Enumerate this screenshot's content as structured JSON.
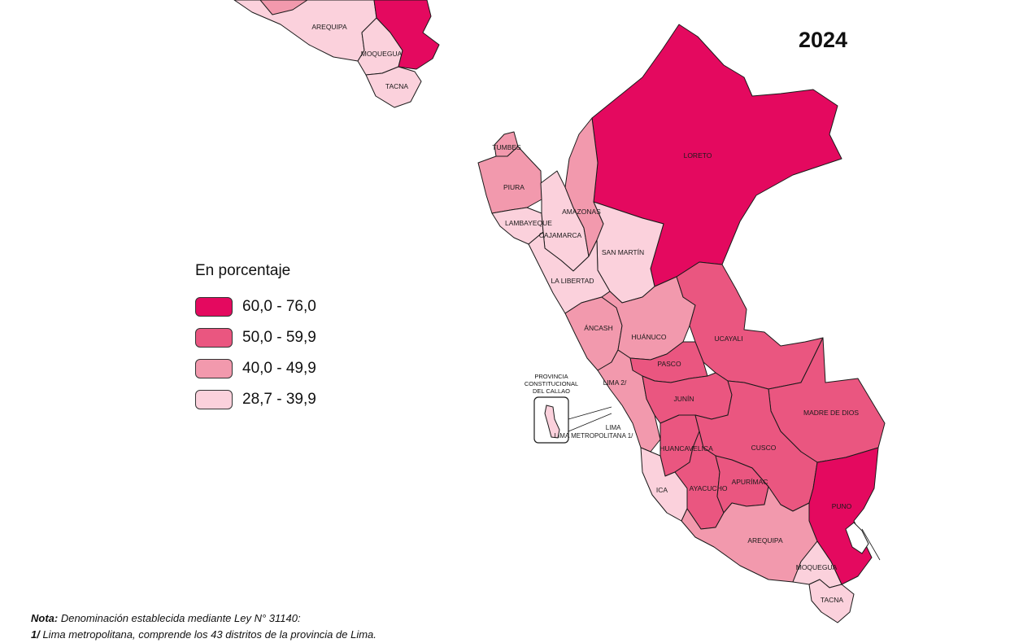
{
  "year": "2024",
  "legend": {
    "title": "En porcentaje",
    "items": [
      {
        "label": "60,0 - 76,0",
        "color": "#e4095f"
      },
      {
        "label": "50,0 - 59,9",
        "color": "#ea5680"
      },
      {
        "label": "40,0 - 49,9",
        "color": "#f299ad"
      },
      {
        "label": "28,7 - 39,9",
        "color": "#fbd1dc"
      }
    ]
  },
  "map": {
    "regions": [
      {
        "name": "LORETO",
        "class": 0
      },
      {
        "name": "TUMBES",
        "class": 2
      },
      {
        "name": "PIURA",
        "class": 2
      },
      {
        "name": "LAMBAYEQUE",
        "class": 3
      },
      {
        "name": "CAJAMARCA",
        "class": 3
      },
      {
        "name": "AMAZONAS",
        "class": 2
      },
      {
        "name": "SAN MARTÍN",
        "class": 3
      },
      {
        "name": "LA LIBERTAD",
        "class": 3
      },
      {
        "name": "ÁNCASH",
        "class": 2
      },
      {
        "name": "HUÁNUCO",
        "class": 2
      },
      {
        "name": "UCAYALI",
        "class": 1
      },
      {
        "name": "PASCO",
        "class": 1
      },
      {
        "name": "LIMA 2/",
        "class": 2
      },
      {
        "name": "JUNÍN",
        "class": 1
      },
      {
        "name": "MADRE DE DIOS",
        "class": 1
      },
      {
        "name": "HUANCAVELICA",
        "class": 1
      },
      {
        "name": "CUSCO",
        "class": 1
      },
      {
        "name": "ICA",
        "class": 3
      },
      {
        "name": "AYACUCHO",
        "class": 1
      },
      {
        "name": "APURÍMAC",
        "class": 1
      },
      {
        "name": "PUNO",
        "class": 0
      },
      {
        "name": "AREQUIPA",
        "class": 2
      },
      {
        "name": "MOQUEGUA",
        "class": 3
      },
      {
        "name": "TACNA",
        "class": 3
      }
    ],
    "callao_label": "PROVINCIA CONSTITUCIONAL DEL CALLAO",
    "lima_metro_label": "LIMA METROPOLITANA 1/"
  },
  "previous_map": {
    "labels": [
      "AREQUIPA",
      "MOQUEGUA",
      "TACNA"
    ]
  },
  "notes": {
    "line1_bold": "Nota:",
    "line1_text": " Denominación establecida mediante Ley N° 31140:",
    "line2_bold": "1/",
    "line2_text": " Lima metropolitana, comprende los 43 distritos de la provincia de Lima."
  }
}
